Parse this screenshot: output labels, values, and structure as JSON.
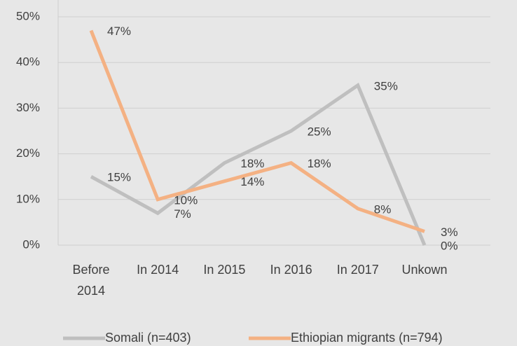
{
  "chart_data": {
    "type": "line",
    "categories": [
      "Before 2014",
      "In 2014",
      "In 2015",
      "In 2016",
      "In 2017",
      "Unkown"
    ],
    "series": [
      {
        "name": "Somali (n=403)",
        "color": "#bfbfbf",
        "values": [
          15,
          7,
          18,
          25,
          35,
          0
        ],
        "value_labels": [
          "15%",
          "7%",
          "18%",
          "25%",
          "35%",
          "0%"
        ]
      },
      {
        "name": "Ethiopian migrants (n=794)",
        "color": "#f4b183",
        "values": [
          47,
          10,
          14,
          18,
          8,
          3
        ],
        "value_labels": [
          "47%",
          "10%",
          "14%",
          "18%",
          "8%",
          "3%"
        ]
      }
    ],
    "ylim": [
      0,
      50
    ],
    "yticks": [
      {
        "value": 0,
        "label": "0%"
      },
      {
        "value": 10,
        "label": "10%"
      },
      {
        "value": 20,
        "label": "20%"
      },
      {
        "value": 30,
        "label": "30%"
      },
      {
        "value": 40,
        "label": "40%"
      },
      {
        "value": 50,
        "label": "50%"
      }
    ],
    "grid": true,
    "legend": "bottom"
  }
}
